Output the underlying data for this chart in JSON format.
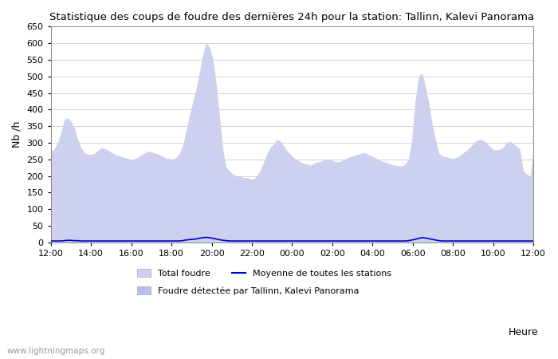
{
  "title": "Statistique des coups de foudre des dernières 24h pour la station: Tallinn, Kalevi Panorama",
  "ylabel": "Nb /h",
  "xlabel": "Heure",
  "ylim": [
    0,
    650
  ],
  "yticks": [
    0,
    50,
    100,
    150,
    200,
    250,
    300,
    350,
    400,
    450,
    500,
    550,
    600,
    650
  ],
  "xtick_labels": [
    "12:00",
    "14:00",
    "16:00",
    "18:00",
    "20:00",
    "22:00",
    "00:00",
    "02:00",
    "04:00",
    "06:00",
    "08:00",
    "10:00",
    "12:00"
  ],
  "xtick_positions": [
    0,
    12,
    24,
    36,
    48,
    60,
    72,
    84,
    96,
    108,
    120,
    132,
    144
  ],
  "fill_color_total": "#cdd0ee",
  "line_color_mean": "#0000cc",
  "watermark": "www.lightningmaps.org",
  "legend1": "Total foudre",
  "legend2": "Moyenne de toutes les stations",
  "legend3": "Foudre détectée par Tallinn, Kalevi Panorama",
  "y_total": [
    275,
    280,
    300,
    330,
    370,
    375,
    365,
    345,
    310,
    285,
    270,
    265,
    265,
    268,
    278,
    285,
    282,
    278,
    270,
    265,
    262,
    258,
    255,
    252,
    250,
    252,
    258,
    265,
    270,
    275,
    272,
    268,
    265,
    260,
    255,
    252,
    250,
    255,
    265,
    290,
    330,
    380,
    420,
    460,
    510,
    565,
    600,
    590,
    555,
    480,
    380,
    280,
    225,
    215,
    205,
    200,
    200,
    195,
    195,
    192,
    190,
    200,
    215,
    240,
    265,
    285,
    295,
    310,
    305,
    290,
    275,
    265,
    255,
    248,
    242,
    238,
    235,
    232,
    238,
    242,
    245,
    248,
    250,
    248,
    245,
    242,
    245,
    250,
    255,
    258,
    262,
    265,
    268,
    270,
    265,
    260,
    255,
    250,
    245,
    242,
    238,
    235,
    232,
    230,
    230,
    235,
    250,
    310,
    430,
    500,
    510,
    470,
    420,
    360,
    310,
    268,
    260,
    258,
    255,
    252,
    255,
    260,
    268,
    275,
    285,
    295,
    305,
    310,
    308,
    300,
    290,
    280,
    278,
    280,
    285,
    300,
    305,
    298,
    290,
    280,
    215,
    205,
    200,
    275
  ],
  "y_mean": [
    4,
    4,
    4,
    4,
    5,
    6,
    6,
    5,
    5,
    4,
    4,
    4,
    4,
    4,
    4,
    4,
    4,
    4,
    4,
    4,
    4,
    4,
    4,
    4,
    4,
    4,
    4,
    4,
    4,
    4,
    4,
    4,
    4,
    4,
    4,
    4,
    4,
    4,
    4,
    5,
    7,
    8,
    9,
    10,
    12,
    14,
    15,
    14,
    12,
    10,
    8,
    6,
    5,
    4,
    4,
    4,
    4,
    4,
    4,
    4,
    4,
    4,
    4,
    4,
    4,
    4,
    4,
    4,
    4,
    4,
    4,
    4,
    4,
    4,
    4,
    4,
    4,
    4,
    4,
    4,
    4,
    4,
    4,
    4,
    4,
    4,
    4,
    4,
    4,
    4,
    4,
    4,
    4,
    4,
    4,
    4,
    4,
    4,
    4,
    4,
    4,
    4,
    4,
    4,
    4,
    4,
    5,
    7,
    9,
    12,
    14,
    13,
    11,
    9,
    7,
    5,
    4,
    4,
    4,
    4,
    4,
    4,
    4,
    4,
    4,
    4,
    4,
    4,
    4,
    4,
    4,
    4,
    4,
    4,
    4,
    4,
    4,
    4,
    4,
    4,
    4,
    4,
    4,
    4
  ]
}
